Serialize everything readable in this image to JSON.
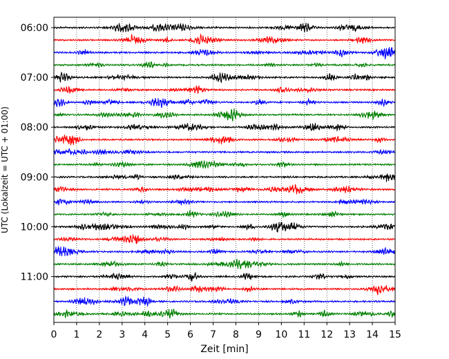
{
  "chart_data": {
    "type": "line",
    "title": "",
    "xlabel": "Zeit  [min]",
    "ylabel": "UTC (Lokalzeit = UTC + 01:00)",
    "xlim": [
      0,
      15
    ],
    "x_ticks": [
      "0",
      "1",
      "2",
      "3",
      "4",
      "5",
      "6",
      "7",
      "8",
      "9",
      "10",
      "11",
      "12",
      "13",
      "14",
      "15"
    ],
    "y_ticks": [
      "06:00",
      "07:00",
      "08:00",
      "09:00",
      "10:00",
      "11:00"
    ],
    "row_minutes": 15,
    "grid": "vertical-dotted",
    "trace_colors": [
      "#000000",
      "#ff0000",
      "#0000ff",
      "#008000"
    ],
    "traces": [
      {
        "start": "06:00",
        "color": "#000000"
      },
      {
        "start": "06:15",
        "color": "#ff0000"
      },
      {
        "start": "06:30",
        "color": "#0000ff"
      },
      {
        "start": "06:45",
        "color": "#008000"
      },
      {
        "start": "07:00",
        "color": "#000000"
      },
      {
        "start": "07:15",
        "color": "#ff0000"
      },
      {
        "start": "07:30",
        "color": "#0000ff"
      },
      {
        "start": "07:45",
        "color": "#008000"
      },
      {
        "start": "08:00",
        "color": "#000000"
      },
      {
        "start": "08:15",
        "color": "#ff0000"
      },
      {
        "start": "08:30",
        "color": "#0000ff"
      },
      {
        "start": "08:45",
        "color": "#008000"
      },
      {
        "start": "09:00",
        "color": "#000000"
      },
      {
        "start": "09:15",
        "color": "#ff0000"
      },
      {
        "start": "09:30",
        "color": "#0000ff"
      },
      {
        "start": "09:45",
        "color": "#008000"
      },
      {
        "start": "10:00",
        "color": "#000000"
      },
      {
        "start": "10:15",
        "color": "#ff0000"
      },
      {
        "start": "10:30",
        "color": "#0000ff"
      },
      {
        "start": "10:45",
        "color": "#008000"
      },
      {
        "start": "11:00",
        "color": "#000000"
      },
      {
        "start": "11:15",
        "color": "#ff0000"
      },
      {
        "start": "11:30",
        "color": "#0000ff"
      },
      {
        "start": "11:45",
        "color": "#008000"
      }
    ]
  }
}
